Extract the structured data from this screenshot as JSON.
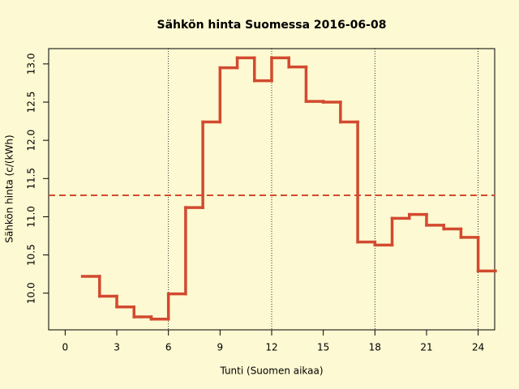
{
  "chart_data": {
    "type": "step",
    "title": "Sähkön hinta Suomessa 2016-06-08",
    "x_label": "Tunti (Suomen aikaa)",
    "y_label": "Sähkön hinta (c/(kWh)",
    "x": [
      1,
      2,
      3,
      4,
      5,
      6,
      7,
      8,
      9,
      10,
      11,
      12,
      13,
      14,
      15,
      16,
      17,
      18,
      19,
      20,
      21,
      22,
      23,
      24,
      25
    ],
    "values": [
      10.22,
      9.96,
      9.82,
      9.69,
      9.66,
      9.99,
      11.12,
      12.24,
      12.95,
      13.08,
      12.78,
      13.08,
      12.96,
      12.51,
      12.5,
      12.24,
      10.67,
      10.63,
      10.98,
      11.03,
      10.89,
      10.84,
      10.73,
      10.29,
      10.29
    ],
    "color": "#d24a2f",
    "mean_line": 11.28,
    "vlines": [
      6,
      12,
      18,
      24
    ],
    "xlim": [
      -0.96,
      24.96
    ],
    "xticks": [
      0,
      3,
      6,
      9,
      12,
      15,
      18,
      21,
      24
    ],
    "ylim": [
      9.52,
      13.2
    ],
    "yticks": [
      {
        "value": 10,
        "label": "10.0"
      },
      {
        "value": 10.5,
        "label": "10.5"
      },
      {
        "value": 11,
        "label": "11.0"
      },
      {
        "value": 11.5,
        "label": "11.5"
      },
      {
        "value": 12,
        "label": "12.0"
      },
      {
        "value": 12.5,
        "label": "12.5"
      },
      {
        "value": 13,
        "label": "13.0"
      }
    ]
  }
}
